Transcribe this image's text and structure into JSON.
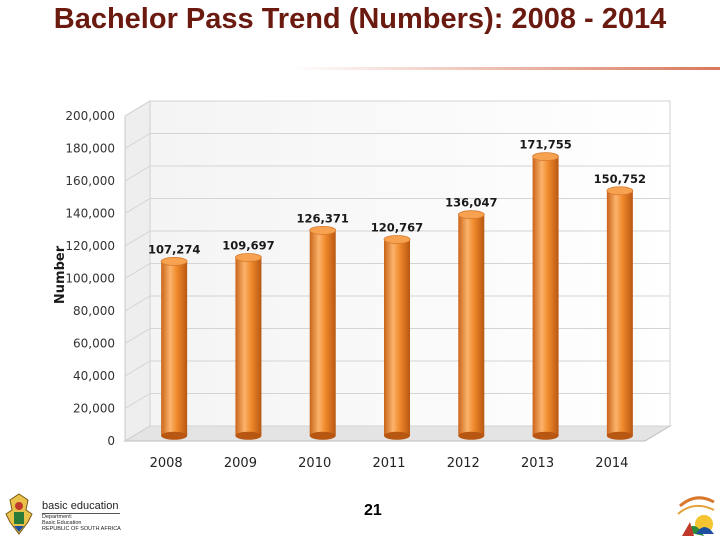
{
  "slide": {
    "title": "Bachelor Pass Trend (Numbers): 2008 - 2014",
    "page_number": "21"
  },
  "footer": {
    "logo_left": {
      "brand": "basic education",
      "lines": [
        "Department:",
        "Basic Education",
        "REPUBLIC OF SOUTH AFRICA"
      ]
    },
    "logo_right_icon": "anniversary-emblem-icon"
  },
  "colors": {
    "title": "#6b1a10",
    "bar": "#f08a2c",
    "bar_dark": "#c9651a",
    "bar_light": "#fbb36c"
  },
  "chart_data": {
    "type": "bar",
    "title": "",
    "xlabel": "",
    "ylabel": "Number",
    "categories": [
      "2008",
      "2009",
      "2010",
      "2011",
      "2012",
      "2013",
      "2014"
    ],
    "values": [
      107274,
      109697,
      126371,
      120767,
      136047,
      171755,
      150752
    ],
    "data_labels": [
      "107,274",
      "109,697",
      "126,371",
      "120,767",
      "136,047",
      "171,755",
      "150,752"
    ],
    "ylim": [
      0,
      200000
    ],
    "yticks": [
      0,
      20000,
      40000,
      60000,
      80000,
      100000,
      120000,
      140000,
      160000,
      180000,
      200000
    ],
    "ytick_labels": [
      "0",
      "20,000",
      "40,000",
      "60,000",
      "80,000",
      "100,000",
      "120,000",
      "140,000",
      "160,000",
      "180,000",
      "200,000"
    ],
    "grid": true,
    "style": "3d-cylinder"
  }
}
